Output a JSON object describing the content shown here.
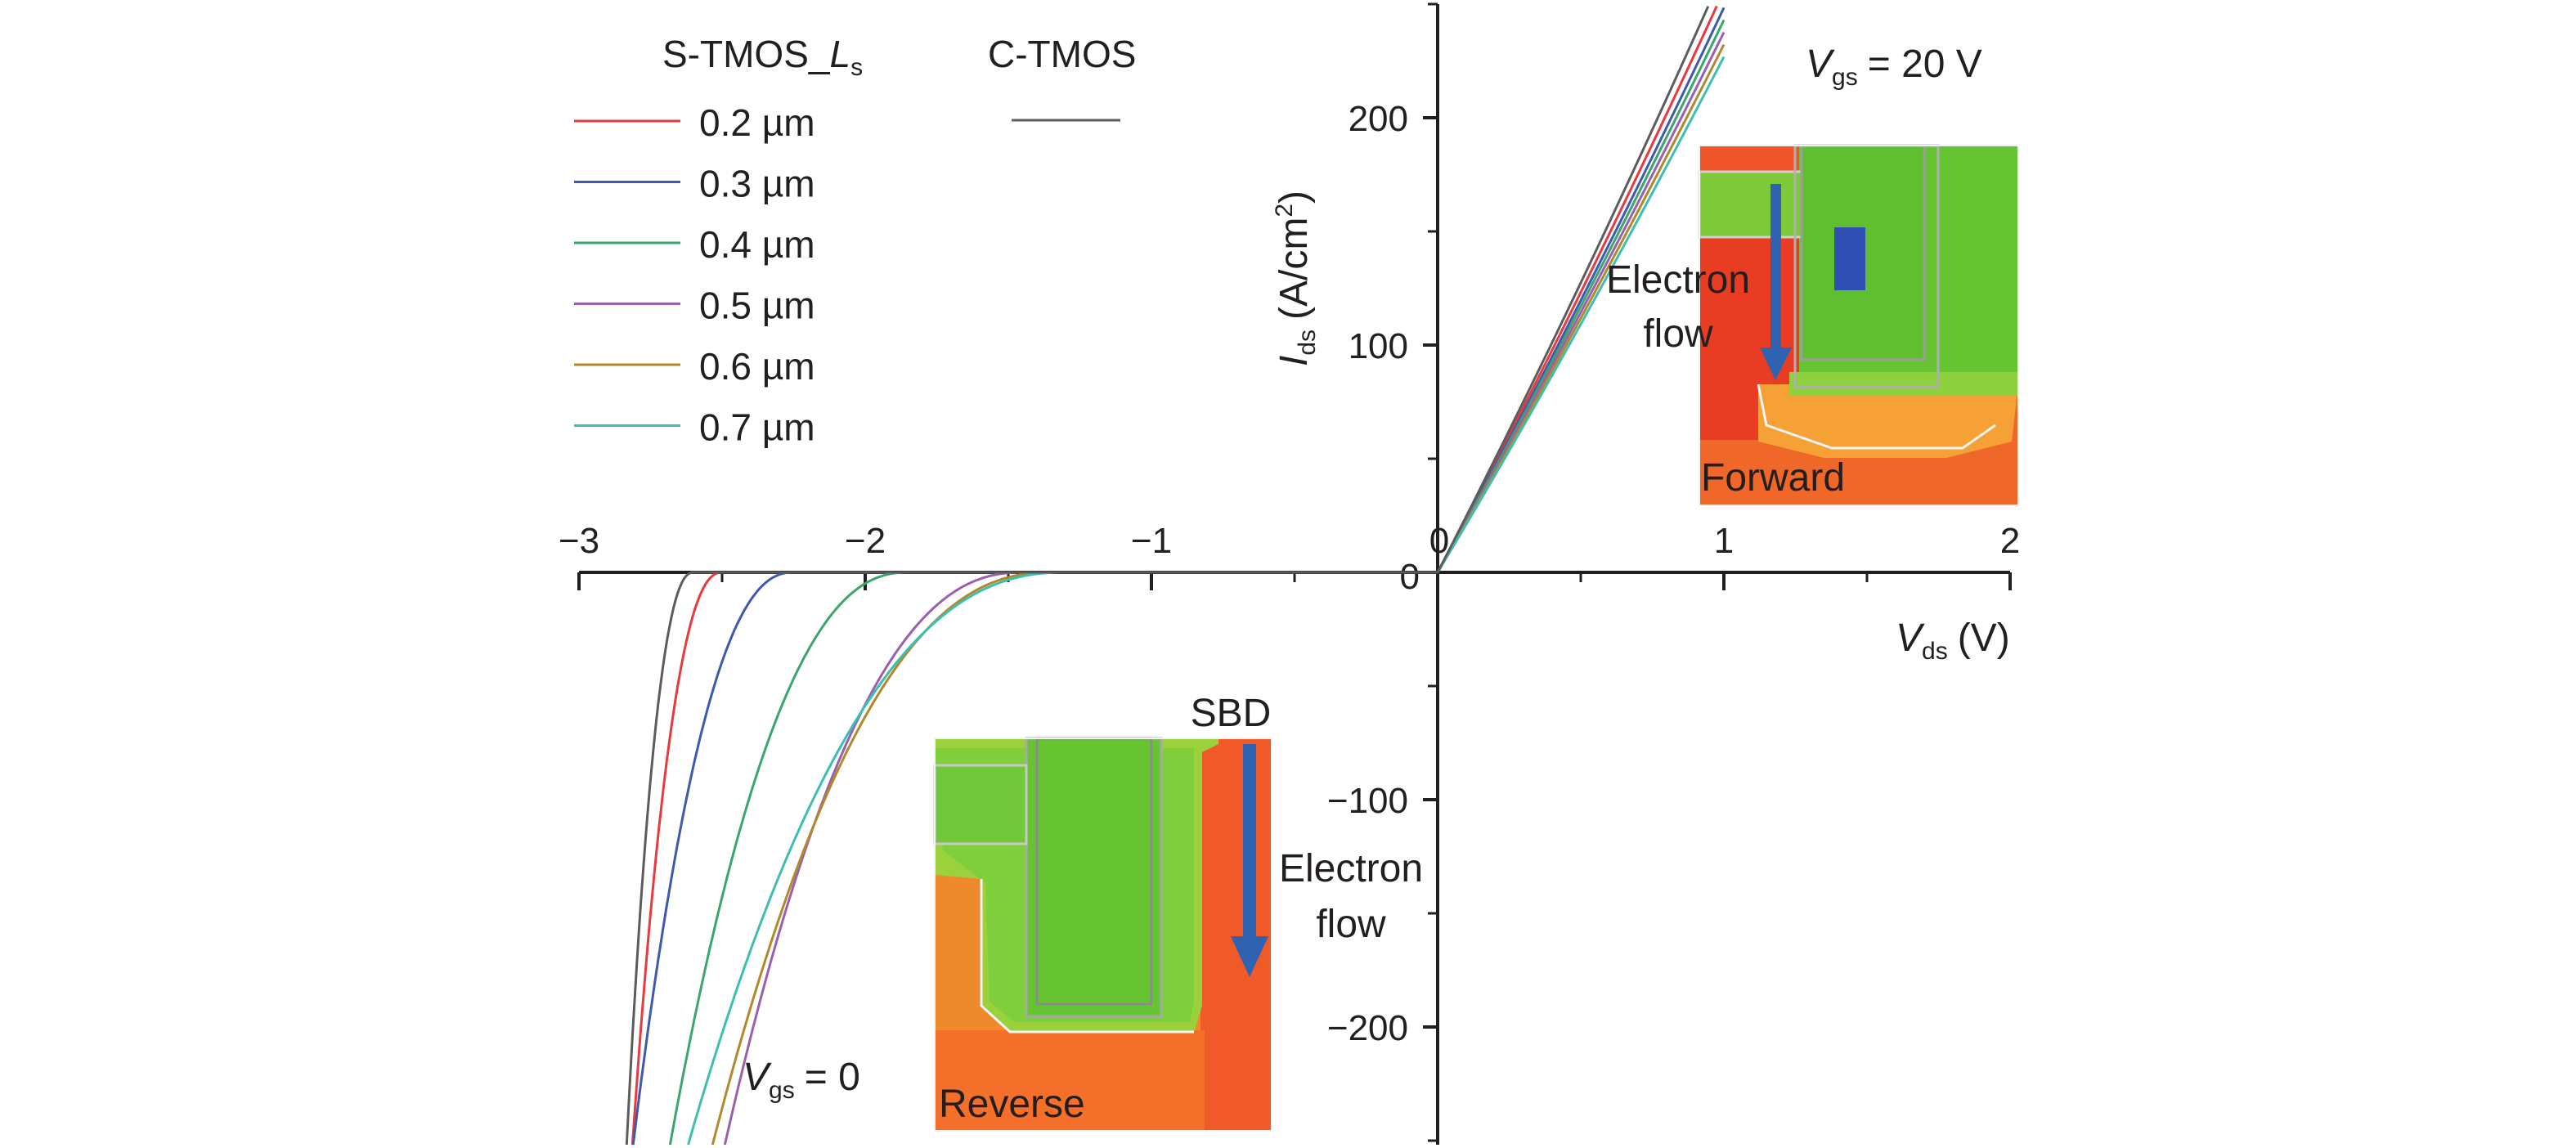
{
  "chart_data": {
    "type": "line",
    "xlabel_main": "V",
    "xlabel_sub": "ds",
    "xlabel_unit": "(V)",
    "ylabel_main": "I",
    "ylabel_sub": "ds",
    "ylabel_unit_pre": "(A/cm",
    "ylabel_unit_sup": "2",
    "ylabel_unit_post": ")",
    "xlim": [
      -3,
      2
    ],
    "ylim": [
      -250,
      250
    ],
    "x_ticks": [
      {
        "value": -3,
        "label": "−3"
      },
      {
        "value": -2,
        "label": "−2"
      },
      {
        "value": -1,
        "label": "−1"
      },
      {
        "value": 0,
        "label": "0"
      },
      {
        "value": 1,
        "label": "1"
      },
      {
        "value": 2,
        "label": "2"
      }
    ],
    "y_ticks": [
      {
        "value": 200,
        "label": "200"
      },
      {
        "value": 100,
        "label": "100"
      },
      {
        "value": 0,
        "label": "0"
      },
      {
        "value": -100,
        "label": "−100"
      },
      {
        "value": -200,
        "label": "−200"
      }
    ],
    "legend": {
      "group_s_main": "S-TMOS_",
      "group_s_var": "L",
      "group_s_sub": "s",
      "group_c": "C-TMOS",
      "placement": "top-left"
    },
    "annotations": {
      "vgs_forward_main": "V",
      "vgs_forward_sub": "gs",
      "vgs_forward_value": "= 20 V",
      "vgs_reverse_main": "V",
      "vgs_reverse_sub": "gs",
      "vgs_reverse_value": "= 0"
    },
    "insets": {
      "forward": {
        "electron_line1": "Electron",
        "electron_line2": "flow",
        "label": "Forward"
      },
      "reverse": {
        "sbd": "SBD",
        "electron_line1": "Electron",
        "electron_line2": "flow",
        "label": "Reverse"
      }
    },
    "series": [
      {
        "name": "0.2 µm",
        "group": "S-TMOS",
        "color": "#e8393f",
        "forward_slope": 237,
        "reverse_onset": -2.5,
        "reverse_scale": 0.055,
        "reverse_power": 2.3
      },
      {
        "name": "0.3 µm",
        "group": "S-TMOS",
        "color": "#3d59b0",
        "forward_slope": 230,
        "reverse_onset": -2.25,
        "reverse_scale": 0.21,
        "reverse_power": 2.3
      },
      {
        "name": "0.4 µm",
        "group": "S-TMOS",
        "color": "#3aa66b",
        "forward_slope": 225,
        "reverse_onset": -1.85,
        "reverse_scale": 0.52,
        "reverse_power": 2.3
      },
      {
        "name": "0.5 µm",
        "group": "S-TMOS",
        "color": "#9b5fb0",
        "forward_slope": 220,
        "reverse_onset": -1.45,
        "reverse_scale": 0.87,
        "reverse_power": 2.3
      },
      {
        "name": "0.6 µm",
        "group": "S-TMOS",
        "color": "#b08a2a",
        "forward_slope": 215,
        "reverse_onset": -1.35,
        "reverse_scale": 1.17,
        "reverse_power": 2.3
      },
      {
        "name": "0.7 µm",
        "group": "S-TMOS",
        "color": "#3cbfb0",
        "forward_slope": 210,
        "reverse_onset": -1.3,
        "reverse_scale": 1.5,
        "reverse_power": 2.3
      },
      {
        "name": "C-TMOS",
        "group": "C-TMOS",
        "color": "#5c5c5c",
        "forward_slope": 245,
        "reverse_onset": -2.6,
        "reverse_scale": 0.028,
        "reverse_power": 2.3
      }
    ]
  }
}
